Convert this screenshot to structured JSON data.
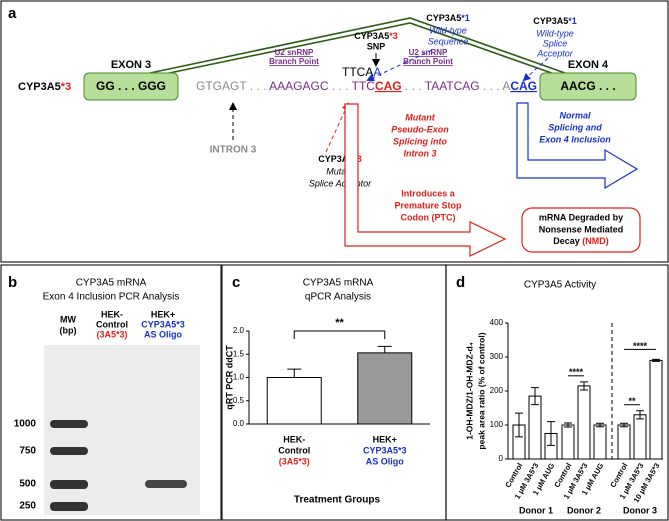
{
  "diagram": {
    "label": "a",
    "gene_left": [
      "CYP3A5",
      "*3"
    ],
    "exon3": {
      "title": "EXON 3",
      "seq": "GG . . . GGG"
    },
    "exon4": {
      "title": "EXON 4",
      "seq": "AACG . . ."
    },
    "sequence": [
      "GTGAGT",
      " . . . ",
      "AAAGAGC",
      " . . . ",
      "TTC",
      "CAG",
      " . . . ",
      "TAATCAG",
      " . . . A",
      "CAG"
    ],
    "snp_base": [
      "TTCA",
      "A"
    ],
    "branch_points": [
      [
        "U2 snRNP",
        "Branch Point"
      ],
      [
        "U2 snRNP",
        "Branch Point"
      ]
    ],
    "snp_label": [
      "CYP3A5",
      "*3",
      "SNP"
    ],
    "wt_sequence": [
      "CYP3A5",
      "*1",
      "Wild-type",
      "Sequence"
    ],
    "wt_acceptor": [
      "CYP3A5",
      "*1",
      "Wild-type",
      "Splice",
      "Acceptor"
    ],
    "intron": "INTRON 3",
    "mutant_acceptor": [
      "CYP3A5",
      "*3",
      "Mutant",
      "Splice Acceptor"
    ],
    "pseudo_exon": [
      "Mutant",
      "Pseudo-Exon",
      "Splicing into",
      "Intron 3"
    ],
    "ptc": [
      "Introduces a",
      "Premature Stop",
      "Codon (PTC)"
    ],
    "nmd": [
      "mRNA Degraded by",
      "Nonsense Mediated",
      "Decay ",
      "(NMD)"
    ],
    "normal": [
      "Normal",
      "Splicing and",
      "Exon 4 Inclusion"
    ]
  },
  "gel": {
    "label": "b",
    "title": "CYP3A5 mRNA",
    "subtitle": "Exon 4 Inclusion PCR Analysis",
    "lanes": [
      [
        "MW",
        "(bp)"
      ],
      [
        "HEK-",
        "Control",
        "(3A5*3)"
      ],
      [
        "HEK+",
        "CYP3A5*3",
        "AS Oligo"
      ]
    ],
    "ladder": [
      "1000",
      "750",
      "500",
      "250"
    ]
  },
  "chart_data": [
    {
      "type": "bar",
      "panel": "c",
      "title": "CYP3A5 mRNA",
      "subtitle": "qPCR Analysis",
      "y_label": "qRT PCR ddCT",
      "x_label": "Treatment Groups",
      "categories": [
        [
          "HEK-",
          "Control",
          "(3A5*3)"
        ],
        [
          "HEK+",
          "CYP3A5*3",
          "AS Oligo"
        ]
      ],
      "values": [
        1.0,
        1.53
      ],
      "errors": [
        0.18,
        0.14
      ],
      "colors": [
        "#ffffff",
        "#999999"
      ],
      "significance": "**",
      "ylim": [
        0,
        2
      ],
      "yticks": [
        {
          "value": 0,
          "label": "0.0"
        },
        {
          "value": 0.5,
          "label": "0.5"
        },
        {
          "value": 1,
          "label": "1.0"
        },
        {
          "value": 1.5,
          "label": "1.5"
        },
        {
          "value": 2,
          "label": "2.0"
        }
      ]
    },
    {
      "type": "bar",
      "panel": "d",
      "title": "CYP3A5 Activity",
      "y_label": [
        "1-OH-MDZ/1-OH-MDZ-d₄",
        "peak area ratio (% of control)"
      ],
      "categories": [
        "Control",
        "1 μM 3A5*3",
        "1 μM AUG",
        "Control",
        "1 μM 3A5*3",
        "1 μM AUG",
        "Control",
        "1 μM 3A5*3",
        "10 μM 3A5*3"
      ],
      "groups": [
        "Donor 1",
        "Donor 2",
        "Donor 3"
      ],
      "values": [
        100,
        185,
        75,
        100,
        215,
        100,
        100,
        130,
        290
      ],
      "errors": [
        35,
        25,
        35,
        6,
        12,
        5,
        5,
        12,
        3
      ],
      "color": "#ffffff",
      "significance": [
        "****",
        "**",
        "****"
      ],
      "ylim": [
        0,
        400
      ],
      "yticks": [
        0,
        100,
        200,
        300,
        400
      ]
    }
  ]
}
